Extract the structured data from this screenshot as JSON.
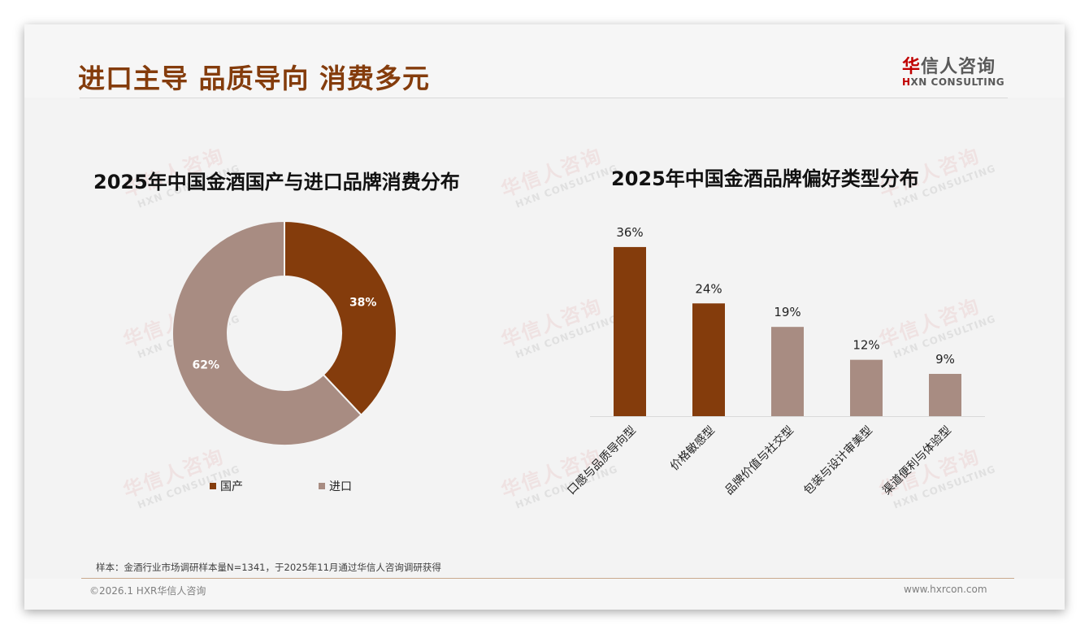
{
  "header": {
    "title": "进口主导 品质导向 消费多元",
    "logo": {
      "cn_accent": "华",
      "cn_rest": "信人咨询",
      "en_accent": "H",
      "en_rest": "XN CONSULTING"
    }
  },
  "watermark": {
    "cn": "华信人咨询",
    "en": "HXN CONSULTING"
  },
  "colors": {
    "title": "#843c0c",
    "domestic": "#843c0c",
    "imported": "#a88c82",
    "bar_highlight": "#843c0c",
    "bar_normal": "#a88c82",
    "logo_red": "#c00000"
  },
  "left_chart": {
    "title": "2025年中国金酒国产与进口品牌消费分布",
    "legend": [
      {
        "label": "国产",
        "color": "#843c0c"
      },
      {
        "label": "进口",
        "color": "#a88c82"
      }
    ],
    "labels": {
      "domestic": "38%",
      "imported": "62%"
    }
  },
  "right_chart": {
    "title": "2025年中国金酒品牌偏好类型分布",
    "bars": [
      {
        "category": "口感与品质导向型",
        "label": "36%"
      },
      {
        "category": "价格敏感型",
        "label": "24%"
      },
      {
        "category": "品牌价值与社交型",
        "label": "19%"
      },
      {
        "category": "包装与设计审美型",
        "label": "12%"
      },
      {
        "category": "渠道便利与体验型",
        "label": "9%"
      }
    ]
  },
  "chart_data": [
    {
      "type": "pie",
      "title": "2025年中国金酒国产与进口品牌消费分布",
      "donut": true,
      "categories": [
        "国产",
        "进口"
      ],
      "values": [
        38,
        62
      ],
      "unit": "%",
      "colors": [
        "#843c0c",
        "#a88c82"
      ],
      "legend_position": "bottom"
    },
    {
      "type": "bar",
      "title": "2025年中国金酒品牌偏好类型分布",
      "categories": [
        "口感与品质导向型",
        "价格敏感型",
        "品牌价值与社交型",
        "包装与设计审美型",
        "渠道便利与体验型"
      ],
      "values": [
        36,
        24,
        19,
        12,
        9
      ],
      "unit": "%",
      "colors": [
        "#843c0c",
        "#843c0c",
        "#a88c82",
        "#a88c82",
        "#a88c82"
      ],
      "xlabel": "",
      "ylabel": "",
      "ylim": [
        0,
        40
      ],
      "grid": false,
      "data_labels": true,
      "x_tick_rotation": -45
    }
  ],
  "footer": {
    "note": "样本：金酒行业市场调研样本量N=1341，于2025年11月通过华信人咨询调研获得",
    "copyright": "©2026.1 HXR华信人咨询",
    "website": "www.hxrcon.com"
  }
}
